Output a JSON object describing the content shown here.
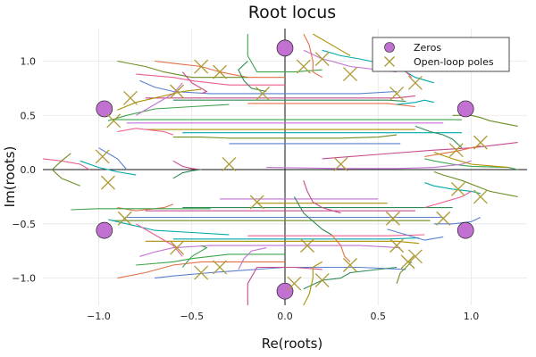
{
  "chart_data": {
    "type": "scatter",
    "title": "Root locus",
    "xlabel": "Re(roots)",
    "ylabel": "Im(roots)",
    "xlim": [
      -1.3,
      1.3
    ],
    "ylim": [
      -1.25,
      1.3
    ],
    "xticks": [
      -1.0,
      -0.5,
      0.0,
      0.5,
      1.0
    ],
    "xtick_labels": [
      "−1.0",
      "−0.5",
      "0.0",
      "0.5",
      "1.0"
    ],
    "yticks": [
      -1.0,
      -0.5,
      0.0,
      0.5,
      1.0
    ],
    "ytick_labels": [
      "−1.0",
      "−0.5",
      "0.0",
      "0.5",
      "1.0"
    ],
    "grid": true,
    "legend_position": "top-right",
    "colors": {
      "zeros": "#c271d2",
      "poles": "#ad9a34",
      "palette": [
        "#e26f46",
        "#3da44d",
        "#c271d2",
        "#ad8f00",
        "#00a9ad",
        "#ed5d92",
        "#6b8e23",
        "#5a7fd0",
        "#c74a8d",
        "#2e8b57"
      ]
    },
    "series": [
      {
        "name": "Zeros",
        "marker": "circle",
        "x": [
          0.0,
          -0.97,
          0.97,
          -0.97,
          0.97,
          0.0
        ],
        "y": [
          1.12,
          0.56,
          0.56,
          -0.56,
          -0.56,
          -1.12
        ]
      },
      {
        "name": "Open-loop poles",
        "marker": "x",
        "x": [
          -0.45,
          -0.35,
          0.2,
          0.35,
          0.7,
          -0.83,
          -0.58,
          0.6,
          -0.92,
          -0.98,
          -0.95,
          0.92,
          1.05,
          0.93,
          1.05,
          -0.86,
          -0.58,
          0.6,
          0.85,
          -0.45,
          -0.35,
          0.2,
          0.35,
          0.7,
          0.58,
          -0.12,
          0.1,
          -0.3,
          0.3,
          0.12,
          0.66,
          0.05,
          -0.15
        ],
        "y": [
          0.95,
          0.9,
          1.02,
          0.88,
          0.8,
          0.66,
          0.72,
          0.7,
          0.45,
          0.12,
          -0.12,
          0.18,
          0.25,
          -0.18,
          -0.25,
          -0.45,
          -0.72,
          -0.7,
          -0.45,
          -0.95,
          -0.9,
          -1.02,
          -0.88,
          -0.8,
          -0.45,
          0.7,
          0.95,
          0.05,
          0.05,
          -0.7,
          -0.85,
          -1.05,
          -0.3
        ]
      }
    ],
    "locus_branches": [
      {
        "x": [
          -0.7,
          -0.6,
          -0.45,
          -0.35,
          -0.2,
          0.0
        ],
        "y": [
          1.0,
          0.98,
          0.95,
          0.9,
          0.85,
          0.85
        ]
      },
      {
        "x": [
          -0.2,
          -0.2,
          -0.15,
          -0.05,
          0.05,
          0.2
        ],
        "y": [
          1.25,
          1.05,
          0.9,
          0.9,
          0.9,
          0.92
        ]
      },
      {
        "x": [
          0.1,
          0.2,
          0.25,
          0.35,
          0.6
        ],
        "y": [
          1.1,
          1.02,
          1.0,
          0.95,
          0.9
        ]
      },
      {
        "x": [
          0.15,
          0.25,
          0.3,
          0.35
        ],
        "y": [
          1.25,
          1.15,
          1.1,
          1.05
        ]
      },
      {
        "x": [
          0.2,
          0.3,
          0.4,
          0.6,
          0.7,
          0.8
        ],
        "y": [
          1.1,
          1.05,
          1.02,
          0.95,
          0.85,
          0.8
        ]
      },
      {
        "x": [
          -0.8,
          -0.6,
          -0.5,
          -0.4,
          -0.3,
          0.0
        ],
        "y": [
          0.88,
          0.85,
          0.82,
          0.8,
          0.78,
          0.78
        ]
      },
      {
        "x": [
          -0.9,
          -0.75,
          -0.65,
          -0.5,
          -0.2
        ],
        "y": [
          1.0,
          0.95,
          0.9,
          0.85,
          0.85
        ]
      },
      {
        "x": [
          -0.78,
          -0.7,
          -0.6,
          -0.4,
          0.0,
          0.4,
          0.6
        ],
        "y": [
          0.82,
          0.76,
          0.72,
          0.7,
          0.7,
          0.7,
          0.72
        ]
      },
      {
        "x": [
          -0.75,
          -0.55,
          -0.3,
          0.0,
          0.3,
          0.6,
          0.7
        ],
        "y": [
          0.66,
          0.66,
          0.66,
          0.66,
          0.66,
          0.66,
          0.68
        ]
      },
      {
        "x": [
          -0.6,
          -0.3,
          0.0,
          0.3,
          0.55,
          0.65
        ],
        "y": [
          0.64,
          0.64,
          0.64,
          0.64,
          0.64,
          0.63
        ]
      },
      {
        "x": [
          -0.2,
          0.0,
          0.3,
          0.55,
          0.7
        ],
        "y": [
          0.61,
          0.61,
          0.61,
          0.61,
          0.58
        ]
      },
      {
        "x": [
          -0.93,
          -0.8,
          -0.6,
          -0.3,
          0.0,
          0.5,
          0.95
        ],
        "y": [
          0.46,
          0.46,
          0.46,
          0.46,
          0.46,
          0.46,
          0.46
        ]
      },
      {
        "x": [
          -0.85,
          -0.6,
          -0.3,
          0.0,
          0.4,
          0.6,
          0.85
        ],
        "y": [
          0.43,
          0.43,
          0.43,
          0.43,
          0.43,
          0.43,
          0.43
        ]
      },
      {
        "x": [
          -0.75,
          -0.6,
          -0.4,
          -0.2,
          0.2,
          0.7
        ],
        "y": [
          0.37,
          0.37,
          0.37,
          0.37,
          0.37,
          0.37
        ]
      },
      {
        "x": [
          -0.55,
          -0.3,
          0.0,
          0.3,
          0.6,
          0.95
        ],
        "y": [
          0.34,
          0.34,
          0.34,
          0.34,
          0.34,
          0.34
        ]
      },
      {
        "x": [
          -0.9,
          -0.8,
          -0.65,
          -0.6
        ],
        "y": [
          0.35,
          0.38,
          0.35,
          0.32
        ]
      },
      {
        "x": [
          -0.6,
          -0.45,
          -0.3,
          0.0,
          0.3,
          0.5,
          0.6
        ],
        "y": [
          0.3,
          0.3,
          0.29,
          0.29,
          0.29,
          0.3,
          0.32
        ]
      },
      {
        "x": [
          -0.3,
          0.0,
          0.2,
          0.4,
          0.62
        ],
        "y": [
          0.24,
          0.24,
          0.24,
          0.24,
          0.24
        ]
      },
      {
        "x": [
          0.2,
          0.5,
          0.8,
          1.0,
          1.1,
          1.25
        ],
        "y": [
          0.1,
          0.14,
          0.18,
          0.2,
          0.22,
          0.25
        ]
      },
      {
        "x": [
          0.7,
          0.78,
          0.85,
          0.9,
          0.95
        ],
        "y": [
          0.4,
          0.35,
          0.32,
          0.28,
          0.2
        ]
      },
      {
        "x": [
          0.75,
          0.85,
          0.92,
          1.0,
          1.05
        ],
        "y": [
          0.12,
          0.15,
          0.17,
          0.2,
          0.22
        ]
      },
      {
        "x": [
          0.75,
          0.8,
          0.9,
          1.0,
          1.2,
          1.25
        ],
        "y": [
          0.1,
          0.08,
          0.05,
          0.03,
          0.02,
          0.0
        ]
      },
      {
        "x": [
          -0.1,
          0.3,
          0.6,
          0.8,
          0.95,
          1.0
        ],
        "y": [
          0.02,
          0.01,
          0.01,
          0.02,
          0.05,
          0.08
        ]
      },
      {
        "x": [
          0.8,
          0.9,
          1.0,
          1.2
        ],
        "y": [
          0.16,
          0.1,
          0.05,
          0.02
        ]
      },
      {
        "x": [
          -1.1,
          -1.0,
          -0.9,
          -0.8
        ],
        "y": [
          0.08,
          0.02,
          -0.02,
          -0.05
        ]
      },
      {
        "x": [
          -1.3,
          -1.2,
          -1.1,
          -1.05
        ],
        "y": [
          0.1,
          0.08,
          0.05,
          0.0
        ]
      },
      {
        "x": [
          -1.15,
          -1.2,
          -1.25,
          -1.2,
          -1.1
        ],
        "y": [
          0.15,
          0.08,
          0.0,
          -0.08,
          -0.15
        ]
      },
      {
        "x": [
          -1.0,
          -0.9,
          -0.85
        ],
        "y": [
          0.2,
          0.1,
          0.0
        ]
      },
      {
        "x": [
          -0.55,
          -0.5,
          -0.42,
          -0.45
        ],
        "y": [
          0.9,
          0.8,
          0.72,
          0.7
        ]
      },
      {
        "x": [
          -0.2,
          -0.25,
          -0.22,
          -0.18,
          -0.1
        ],
        "y": [
          1.0,
          0.92,
          0.82,
          0.75,
          0.72
        ]
      },
      {
        "x": [
          0.1,
          0.13,
          0.15,
          0.15,
          0.2
        ],
        "y": [
          1.25,
          1.15,
          1.0,
          0.9,
          0.85
        ]
      },
      {
        "x": [
          -0.95,
          -0.85,
          -0.7,
          -0.5,
          -0.3
        ],
        "y": [
          0.45,
          0.5,
          0.56,
          0.58,
          0.6
        ]
      },
      {
        "x": [
          -0.55,
          -0.6,
          -0.7,
          -0.8
        ],
        "y": [
          0.8,
          0.7,
          0.6,
          0.5
        ]
      },
      {
        "x": [
          -0.9,
          -0.8,
          -0.65,
          -0.55,
          -0.45
        ],
        "y": [
          0.55,
          0.62,
          0.68,
          0.72,
          0.74
        ]
      },
      {
        "x": [
          0.6,
          0.7,
          0.75,
          0.8
        ],
        "y": [
          0.6,
          0.62,
          0.64,
          0.62
        ]
      },
      {
        "x": [
          0.6,
          0.62,
          0.65,
          0.68
        ],
        "y": [
          1.05,
          0.95,
          0.9,
          0.85
        ]
      },
      {
        "x": [
          0.9,
          1.0,
          1.05,
          1.1,
          1.25
        ],
        "y": [
          0.5,
          0.5,
          0.48,
          0.45,
          0.4
        ]
      },
      {
        "x": [
          -0.7,
          -0.6,
          -0.4,
          0.0,
          0.4,
          0.65
        ],
        "y": [
          -1.0,
          -0.98,
          -0.95,
          -0.9,
          -0.9,
          -0.92
        ]
      },
      {
        "x": [
          -0.2,
          -0.2,
          -0.15,
          -0.05,
          0.05,
          0.2
        ],
        "y": [
          -1.25,
          -1.05,
          -0.9,
          -0.9,
          -0.9,
          -0.92
        ]
      },
      {
        "x": [
          0.1,
          0.2,
          0.3,
          0.35,
          0.6
        ],
        "y": [
          -1.1,
          -1.02,
          -1.0,
          -0.95,
          -0.9
        ]
      },
      {
        "x": [
          -0.9,
          -0.75,
          -0.6,
          -0.45,
          -0.2,
          0.0
        ],
        "y": [
          -1.0,
          -0.95,
          -0.88,
          -0.85,
          -0.85,
          -0.85
        ]
      },
      {
        "x": [
          -0.8,
          -0.6,
          -0.5,
          -0.3,
          0.0
        ],
        "y": [
          -0.88,
          -0.85,
          -0.82,
          -0.78,
          -0.78
        ]
      },
      {
        "x": [
          -0.78,
          -0.7,
          -0.6,
          -0.4,
          0.0,
          0.4,
          0.62
        ],
        "y": [
          -0.8,
          -0.76,
          -0.72,
          -0.7,
          -0.7,
          -0.7,
          -0.72
        ]
      },
      {
        "x": [
          -0.75,
          -0.55,
          -0.3,
          0.0,
          0.3,
          0.6,
          0.72
        ],
        "y": [
          -0.66,
          -0.66,
          -0.66,
          -0.66,
          -0.66,
          -0.66,
          -0.68
        ]
      },
      {
        "x": [
          -0.6,
          -0.3,
          0.0,
          0.3,
          0.55,
          0.72
        ],
        "y": [
          -0.64,
          -0.64,
          -0.64,
          -0.64,
          -0.64,
          -0.63
        ]
      },
      {
        "x": [
          -0.2,
          0.0,
          0.3,
          0.55,
          0.75
        ],
        "y": [
          -0.61,
          -0.61,
          -0.61,
          -0.61,
          -0.6
        ]
      },
      {
        "x": [
          -0.93,
          -0.6,
          -0.3,
          0.0,
          0.4,
          0.78
        ],
        "y": [
          -0.47,
          -0.47,
          -0.47,
          -0.47,
          -0.47,
          -0.47
        ]
      },
      {
        "x": [
          -0.85,
          -0.6,
          -0.3,
          0.0,
          0.3,
          0.6,
          0.85
        ],
        "y": [
          -0.44,
          -0.44,
          -0.44,
          -0.44,
          -0.44,
          -0.44,
          -0.44
        ]
      },
      {
        "x": [
          -0.75,
          -0.5,
          -0.2,
          0.2,
          0.5,
          0.7
        ],
        "y": [
          -0.38,
          -0.38,
          -0.38,
          -0.38,
          -0.38,
          -0.38
        ]
      },
      {
        "x": [
          -0.55,
          -0.3,
          0.0,
          0.3,
          0.6,
          0.9
        ],
        "y": [
          -0.35,
          -0.35,
          -0.35,
          -0.35,
          -0.35,
          -0.35
        ]
      },
      {
        "x": [
          -0.9,
          -0.8,
          -0.65,
          -0.6
        ],
        "y": [
          -0.35,
          -0.38,
          -0.35,
          -0.32
        ]
      },
      {
        "x": [
          -1.15,
          -1.0,
          -0.8,
          -0.6,
          -0.4
        ],
        "y": [
          -0.37,
          -0.36,
          -0.36,
          -0.36,
          -0.36
        ]
      },
      {
        "x": [
          -0.35,
          -0.1,
          0.1,
          0.3,
          0.5
        ],
        "y": [
          -0.27,
          -0.27,
          -0.27,
          -0.27,
          -0.27
        ]
      },
      {
        "x": [
          -0.15,
          0.1,
          0.3,
          0.55
        ],
        "y": [
          -0.31,
          -0.31,
          -0.31,
          -0.31
        ]
      },
      {
        "x": [
          0.75,
          0.8,
          0.9,
          1.0,
          1.05
        ],
        "y": [
          -0.12,
          -0.15,
          -0.18,
          -0.2,
          -0.22
        ]
      },
      {
        "x": [
          0.75,
          0.85,
          0.95,
          1.0
        ],
        "y": [
          -0.35,
          -0.3,
          -0.25,
          -0.2
        ]
      },
      {
        "x": [
          0.8,
          0.85,
          0.95,
          1.1,
          1.25
        ],
        "y": [
          -0.02,
          -0.05,
          -0.1,
          -0.2,
          -0.25
        ]
      },
      {
        "x": [
          0.8,
          0.9,
          1.0,
          1.05
        ],
        "y": [
          -0.5,
          -0.5,
          -0.48,
          -0.44
        ]
      },
      {
        "x": [
          0.1,
          0.12,
          0.15,
          0.2,
          0.3
        ],
        "y": [
          -0.1,
          -0.2,
          -0.3,
          -0.35,
          -0.4
        ]
      },
      {
        "x": [
          0.05,
          0.1,
          0.2,
          0.25
        ],
        "y": [
          -0.25,
          -0.4,
          -0.55,
          -0.6
        ]
      },
      {
        "x": [
          0.25,
          0.3,
          0.32,
          0.35
        ],
        "y": [
          -0.6,
          -0.7,
          -0.8,
          -0.85
        ]
      },
      {
        "x": [
          -0.55,
          -0.5,
          -0.42,
          -0.45
        ],
        "y": [
          -0.9,
          -0.8,
          -0.72,
          -0.7
        ]
      },
      {
        "x": [
          -0.25,
          -0.22,
          -0.18,
          -0.1
        ],
        "y": [
          -0.92,
          -0.82,
          -0.75,
          -0.72
        ]
      },
      {
        "x": [
          0.1,
          0.13,
          0.15,
          0.15,
          0.2
        ],
        "y": [
          -1.25,
          -1.15,
          -1.0,
          -0.9,
          -0.85
        ]
      },
      {
        "x": [
          -0.95,
          -0.85,
          -0.7,
          -0.5,
          -0.3
        ],
        "y": [
          -0.46,
          -0.5,
          -0.56,
          -0.58,
          -0.6
        ]
      },
      {
        "x": [
          -0.55,
          -0.6,
          -0.7,
          -0.8
        ],
        "y": [
          -0.8,
          -0.7,
          -0.6,
          -0.5
        ]
      },
      {
        "x": [
          0.6,
          0.62,
          0.65,
          0.68
        ],
        "y": [
          -1.05,
          -0.95,
          -0.9,
          -0.85
        ]
      },
      {
        "x": [
          0.55,
          0.65,
          0.75,
          0.85
        ],
        "y": [
          -0.55,
          -0.6,
          -0.65,
          -0.62
        ]
      },
      {
        "x": [
          -0.6,
          -0.55,
          -0.5,
          -0.45
        ],
        "y": [
          0.08,
          0.03,
          0.01,
          0.0
        ]
      },
      {
        "x": [
          -0.6,
          -0.55,
          -0.5,
          -0.45
        ],
        "y": [
          -0.08,
          -0.03,
          -0.01,
          0.0
        ]
      }
    ]
  }
}
